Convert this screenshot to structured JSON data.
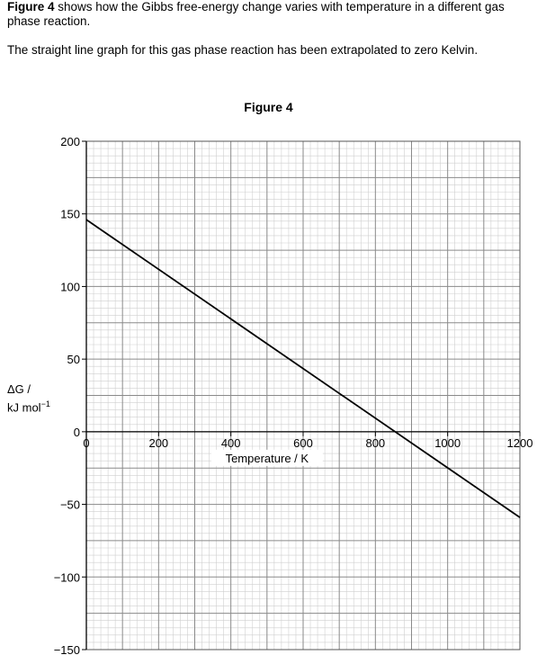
{
  "intro": {
    "figure_ref": "Figure 4",
    "line1_rest": " shows how the Gibbs free-energy change varies with temperature in a different gas phase reaction.",
    "line2": "The straight line graph for this gas phase reaction has been extrapolated to zero Kelvin."
  },
  "chart_data": {
    "type": "line",
    "title": "Figure 4",
    "xlabel": "Temperature / K",
    "ylabel_line1": "ΔG /",
    "ylabel_line2": "kJ mol",
    "ylabel_sup": "−1",
    "xlim": [
      0,
      1200
    ],
    "ylim": [
      -150,
      200
    ],
    "x_ticks": [
      0,
      200,
      400,
      600,
      800,
      1000,
      1200
    ],
    "x_tick_labels": [
      "0",
      "200",
      "400",
      "600",
      "800",
      "1000",
      "1200"
    ],
    "y_ticks": [
      200,
      150,
      100,
      50,
      0,
      -50,
      -100,
      -150
    ],
    "y_tick_labels": [
      "200",
      "150",
      "100",
      "50",
      "0",
      "−50",
      "−100",
      "−150"
    ],
    "grid": true,
    "series": [
      {
        "x": [
          0,
          1200
        ],
        "y": [
          146,
          -59
        ]
      }
    ],
    "line_color": "#000000",
    "grid_major_color": "#8a8a8a",
    "grid_minor_color": "#cfcfcf"
  }
}
